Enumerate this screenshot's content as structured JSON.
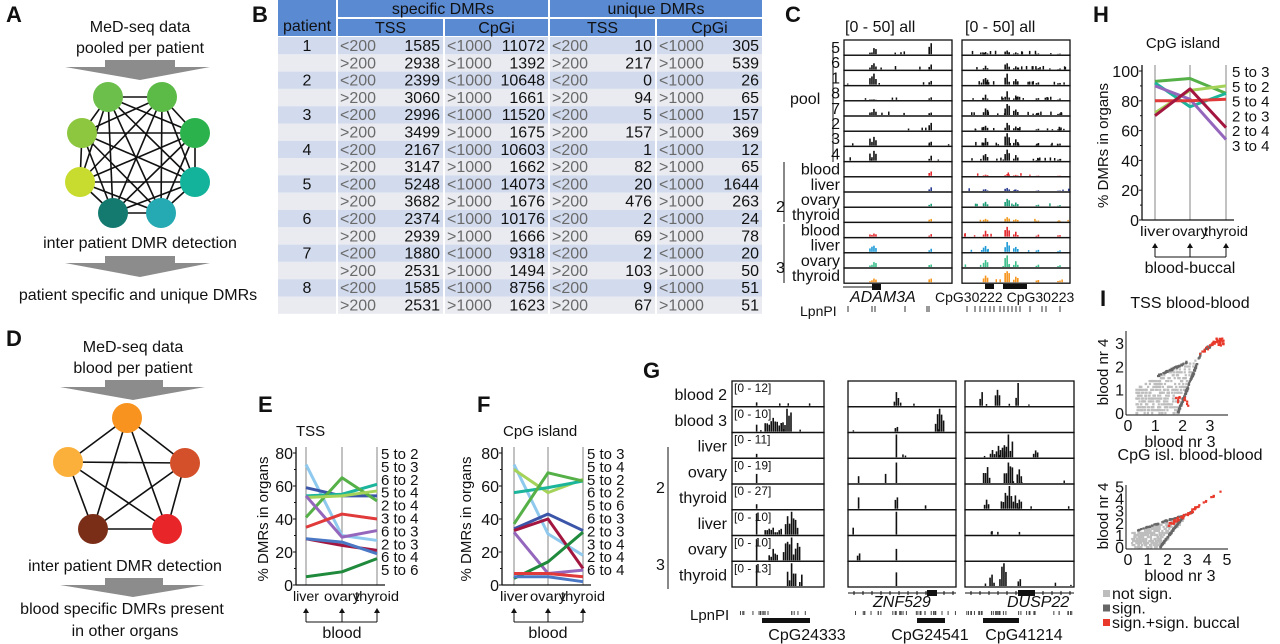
{
  "panel_labels": {
    "a": "A",
    "b": "B",
    "c": "C",
    "d": "D",
    "e": "E",
    "f": "F",
    "g": "G",
    "h": "H",
    "i": "I"
  },
  "panel_a": {
    "line1": "MeD-seq data",
    "line2": "pooled per patient",
    "middle": "inter patient DMR detection",
    "result": "patient specific and unique DMRs",
    "node_colors": [
      "#6cbf4a",
      "#5cba47",
      "#8dc63f",
      "#2bb24c",
      "#c8dc2f",
      "#12b39a",
      "#147a70",
      "#25a9b3"
    ],
    "arrow_color": "#8c8c8c"
  },
  "panel_b": {
    "header_patient": "patient",
    "header_specific": "specific DMRs",
    "header_unique": "unique DMRs",
    "header_tss": "TSS",
    "header_cpgi": "CpGi",
    "header_color": "#5a8ad2",
    "rows": [
      [
        "1",
        "<200",
        "1585",
        "<1000",
        "11072",
        "<200",
        "10",
        "<1000",
        "305"
      ],
      [
        "",
        ">200",
        "2938",
        ">1000",
        "1392",
        ">200",
        "217",
        ">1000",
        "539"
      ],
      [
        "2",
        "<200",
        "2399",
        "<1000",
        "10648",
        "<200",
        "0",
        "<1000",
        "26"
      ],
      [
        "",
        ">200",
        "3060",
        ">1000",
        "1661",
        ">200",
        "94",
        ">1000",
        "65"
      ],
      [
        "3",
        "<200",
        "2996",
        "<1000",
        "11520",
        "<200",
        "5",
        "<1000",
        "157"
      ],
      [
        "",
        ">200",
        "3499",
        ">1000",
        "1675",
        ">200",
        "157",
        ">1000",
        "369"
      ],
      [
        "4",
        "<200",
        "2167",
        "<1000",
        "10603",
        "<200",
        "1",
        "<1000",
        "12"
      ],
      [
        "",
        ">200",
        "3147",
        ">1000",
        "1662",
        ">200",
        "82",
        ">1000",
        "65"
      ],
      [
        "5",
        "<200",
        "5248",
        "<1000",
        "14073",
        "<200",
        "20",
        "<1000",
        "1644"
      ],
      [
        "",
        ">200",
        "3682",
        ">1000",
        "1676",
        ">200",
        "476",
        ">1000",
        "263"
      ],
      [
        "6",
        "<200",
        "2374",
        "<1000",
        "10176",
        "<200",
        "2",
        "<1000",
        "24"
      ],
      [
        "",
        ">200",
        "2939",
        ">1000",
        "1666",
        ">200",
        "69",
        ">1000",
        "78"
      ],
      [
        "7",
        "<200",
        "1880",
        "<1000",
        "9318",
        "<200",
        "2",
        "<1000",
        "20"
      ],
      [
        "",
        ">200",
        "2531",
        ">1000",
        "1494",
        ">200",
        "103",
        ">1000",
        "50"
      ],
      [
        "8",
        "<200",
        "1585",
        "<1000",
        "8756",
        "<200",
        "9",
        "<1000",
        "51"
      ],
      [
        "",
        ">200",
        "2531",
        ">1000",
        "1623",
        ">200",
        "67",
        ">1000",
        "51"
      ]
    ]
  },
  "panel_c": {
    "range_left": "[0 - 50] all",
    "range_right": "[0 - 50] all",
    "pool_label": "pool",
    "pool_tracks": [
      "5",
      "6",
      "1",
      "8",
      "7",
      "2",
      "3",
      "4"
    ],
    "group2_id": "2",
    "group3_id": "3",
    "organs": [
      "blood",
      "liver",
      "ovary",
      "thyroid"
    ],
    "group2_colors": [
      "#e3262c",
      "#2a3a8f",
      "#1b9e77",
      "#f29b1f"
    ],
    "group3_colors": [
      "#e3262c",
      "#1f9ad6",
      "#3cc08c",
      "#f7941d"
    ],
    "gene": "ADAM3A",
    "cpg_labels": "CpG30222 CpG30223",
    "lpnpi": "LpnPI"
  },
  "panel_d": {
    "line1": "MeD-seq data",
    "line2": "blood per patient",
    "middle": "inter patient DMR detection",
    "result1": "blood specific DMRs present",
    "result2": "in other organs",
    "node_colors": [
      "#f7931e",
      "#fbb03b",
      "#d4502a",
      "#7b2e17",
      "#e8262a"
    ]
  },
  "panel_g": {
    "tracks": [
      {
        "label": "blood 2",
        "range": "[0 - 12]"
      },
      {
        "label": "blood 3",
        "range": "[0 - 10]"
      },
      {
        "label": "liver",
        "range": "[0 - 11]"
      },
      {
        "label": "ovary",
        "range": "[0 - 19]"
      },
      {
        "label": "thyroid",
        "range": "[0 - 27]"
      },
      {
        "label": "liver",
        "range": "[0 - 10]"
      },
      {
        "label": "ovary",
        "range": "[0 - 10]"
      },
      {
        "label": "thyroid",
        "range": "[0 - 13]"
      }
    ],
    "group2_id": "2",
    "group3_id": "3",
    "gene1": "ZNF529",
    "gene2": "DUSP22",
    "lpnpi": "LpnPI",
    "cpg1": "CpG24333",
    "cpg2": "CpG24541",
    "cpg3": "CpG41214"
  },
  "chart_data": [
    {
      "id": "E",
      "type": "line",
      "title": "TSS",
      "ylabel": "% DMRs in organs",
      "xlabel": "blood",
      "categories": [
        "liver",
        "ovary",
        "thyroid"
      ],
      "ylim": [
        0,
        80
      ],
      "yticks": [
        "0",
        "20",
        "40",
        "60",
        "80"
      ],
      "legend": [
        "5 to 2",
        "5 to 3",
        "6 to 2",
        "5 to 4",
        "2 to 4",
        "3 to 4",
        "6 to 3",
        "2 to 3",
        "6 to 4",
        "5 to 6"
      ],
      "series": [
        {
          "color": "#8fc9ee",
          "values": [
            73,
            30,
            27
          ]
        },
        {
          "color": "#3b55a8",
          "values": [
            59,
            54,
            54
          ]
        },
        {
          "color": "#1bb59c",
          "values": [
            54,
            55,
            61
          ]
        },
        {
          "color": "#55b047",
          "values": [
            41,
            65,
            51
          ]
        },
        {
          "color": "#a5d35a",
          "values": [
            53,
            54,
            57
          ]
        },
        {
          "color": "#9467bd",
          "values": [
            54,
            29,
            33
          ]
        },
        {
          "color": "#e03a3a",
          "values": [
            35,
            43,
            40
          ]
        },
        {
          "color": "#a3163f",
          "values": [
            28,
            24,
            21
          ]
        },
        {
          "color": "#4a78c4",
          "values": [
            28,
            26,
            19
          ]
        },
        {
          "color": "#1f8a3c",
          "values": [
            5,
            8,
            16
          ]
        }
      ]
    },
    {
      "id": "F",
      "type": "line",
      "title": "CpG island",
      "ylabel": "% DMRs in organs",
      "xlabel": "blood",
      "categories": [
        "liver",
        "ovary",
        "thyroid"
      ],
      "ylim": [
        0,
        80
      ],
      "yticks": [
        "0",
        "20",
        "40",
        "60",
        "80"
      ],
      "legend": [
        "5 to 3",
        "5 to 4",
        "5 to 2",
        "6 to 2",
        "5 to 6",
        "6 to 3",
        "2 to 3",
        "3 to 4",
        "2 to 4",
        "6 to 4"
      ],
      "series": [
        {
          "color": "#8fc9ee",
          "values": [
            73,
            31,
            18
          ]
        },
        {
          "color": "#a5d35a",
          "values": [
            70,
            56,
            64
          ]
        },
        {
          "color": "#1bb59c",
          "values": [
            56,
            59,
            63
          ]
        },
        {
          "color": "#55b047",
          "values": [
            37,
            68,
            63
          ]
        },
        {
          "color": "#3b55a8",
          "values": [
            34,
            43,
            33
          ]
        },
        {
          "color": "#a3163f",
          "values": [
            33,
            40,
            10
          ]
        },
        {
          "color": "#9467bd",
          "values": [
            32,
            7,
            9
          ]
        },
        {
          "color": "#1f8a3c",
          "values": [
            4,
            14,
            32
          ]
        },
        {
          "color": "#e03a3a",
          "values": [
            7,
            7,
            5
          ]
        },
        {
          "color": "#4a78c4",
          "values": [
            5,
            5,
            2
          ]
        }
      ]
    },
    {
      "id": "H",
      "type": "line",
      "title": "CpG island",
      "ylabel": "% DMRs in organs",
      "xlabel": "blood-buccal",
      "categories": [
        "liver",
        "ovary",
        "thyroid"
      ],
      "ylim": [
        0,
        100
      ],
      "yticks": [
        "0",
        "20",
        "40",
        "60",
        "80",
        "100"
      ],
      "legend": [
        "5 to 3",
        "5 to 2",
        "5 to 4",
        "2 to 3",
        "2 to 4",
        "3 to 4"
      ],
      "series": [
        {
          "color": "#55b047",
          "values": [
            93,
            95,
            85
          ]
        },
        {
          "color": "#a5d35a",
          "values": [
            72,
            87,
            90
          ]
        },
        {
          "color": "#1bb59c",
          "values": [
            92,
            76,
            85
          ]
        },
        {
          "color": "#9467bd",
          "values": [
            90,
            81,
            54
          ]
        },
        {
          "color": "#e03a3a",
          "values": [
            80,
            80,
            81
          ]
        },
        {
          "color": "#a3163f",
          "values": [
            70,
            88,
            62
          ]
        }
      ]
    },
    {
      "id": "I-top",
      "type": "scatter",
      "title": "TSS blood-blood",
      "xlabel": "blood nr 3",
      "ylabel": "blood nr 4",
      "xlim": [
        0,
        3.5
      ],
      "ylim": [
        0,
        3.3
      ],
      "xticks": [
        "0",
        "1",
        "2",
        "3"
      ],
      "yticks": [
        "0",
        "1",
        "2",
        "3"
      ],
      "legend": [
        "not sign.",
        "sign.",
        "sign.+sign. buccal"
      ],
      "colors": [
        "#bdbdbd",
        "#666666",
        "#e8392b"
      ]
    },
    {
      "id": "I-bottom",
      "type": "scatter",
      "title": "CpG isl. blood-blood",
      "xlabel": "blood nr 3",
      "ylabel": "blood nr 4",
      "xlim": [
        0,
        5
      ],
      "ylim": [
        0,
        5
      ],
      "xticks": [
        "0",
        "1",
        "2",
        "3",
        "4",
        "5"
      ],
      "yticks": [
        "0",
        "1",
        "2",
        "3",
        "4",
        "5"
      ],
      "legend": [
        "not sign.",
        "sign.",
        "sign.+sign. buccal"
      ],
      "colors": [
        "#bdbdbd",
        "#666666",
        "#e8392b"
      ]
    }
  ]
}
